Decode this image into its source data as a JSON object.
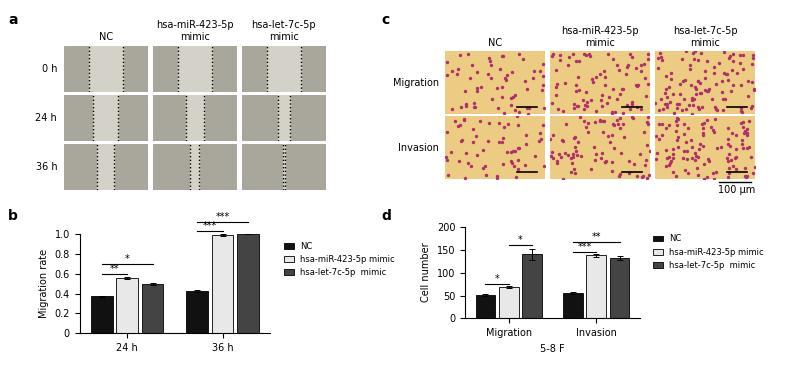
{
  "panel_labels": [
    "a",
    "b",
    "c",
    "d"
  ],
  "image_panels": [
    {
      "label": "a",
      "columns": [
        "NC",
        "hsa-miR-423-5p\nmimic",
        "hsa-let-7c-5p\nmimic"
      ],
      "rows": [
        "0 h",
        "24 h",
        "36 h"
      ]
    },
    {
      "label": "c",
      "columns": [
        "NC",
        "hsa-miR-423-5p\nmimic",
        "hsa-let-7c-5p\nmimic"
      ],
      "rows": [
        "Migration",
        "Invasion"
      ],
      "scale_bar": "100 μm"
    }
  ],
  "chart_data": [
    {
      "type": "bar",
      "panel": "b",
      "y_label": "Migration rate",
      "categories": [
        "24 h",
        "36 h"
      ],
      "series": [
        {
          "name": "NC",
          "color": "#111111",
          "values": [
            0.37,
            0.43
          ],
          "errors": [
            0.01,
            0.01
          ]
        },
        {
          "name": "hsa-miR-423-5p mimic",
          "color": "#e8e8e8",
          "values": [
            0.56,
            0.99
          ],
          "errors": [
            0.01,
            0.01
          ]
        },
        {
          "name": "hsa-let-7c-5p  mimic",
          "color": "#444444",
          "values": [
            0.5,
            1.0
          ],
          "errors": [
            0.01,
            0.0
          ]
        }
      ],
      "ylim": [
        0,
        1.0
      ],
      "yticks": [
        0,
        0.2,
        0.4,
        0.6,
        0.8,
        1.0
      ],
      "legend": "upper left",
      "significance": [
        {
          "category": "24 h",
          "from": "NC",
          "to": "hsa-miR-423-5p mimic",
          "y": 0.6,
          "label": "**"
        },
        {
          "category": "24 h",
          "from": "NC",
          "to": "hsa-let-7c-5p  mimic",
          "y": 0.7,
          "label": "*"
        },
        {
          "category": "36 h",
          "from": "NC",
          "to": "hsa-miR-423-5p mimic",
          "y": 1.03,
          "label": "***"
        },
        {
          "category": "36 h",
          "from": "NC",
          "to": "hsa-let-7c-5p  mimic",
          "y": 1.12,
          "label": "***"
        }
      ]
    },
    {
      "type": "bar",
      "panel": "d",
      "y_label": "Cell number",
      "x_label": "5-8 F",
      "categories": [
        "Migration",
        "Invasion"
      ],
      "series": [
        {
          "name": "NC",
          "color": "#111111",
          "values": [
            52,
            56
          ],
          "errors": [
            2,
            2
          ]
        },
        {
          "name": "hsa-miR-423-5p mimic",
          "color": "#e8e8e8",
          "values": [
            68,
            138
          ],
          "errors": [
            2,
            3
          ]
        },
        {
          "name": "hsa-let-7c-5p  mimic",
          "color": "#444444",
          "values": [
            140,
            132
          ],
          "errors": [
            12,
            4
          ]
        }
      ],
      "ylim": [
        0,
        200
      ],
      "yticks": [
        0,
        50,
        100,
        150,
        200
      ],
      "legend": "upper left",
      "significance": [
        {
          "category": "Migration",
          "from": "NC",
          "to": "hsa-miR-423-5p mimic",
          "y": 76,
          "label": "*"
        },
        {
          "category": "Migration",
          "from": "hsa-miR-423-5p mimic",
          "to": "hsa-let-7c-5p  mimic",
          "y": 160,
          "label": "*"
        },
        {
          "category": "Invasion",
          "from": "NC",
          "to": "hsa-miR-423-5p mimic",
          "y": 146,
          "label": "***"
        },
        {
          "category": "Invasion",
          "from": "NC",
          "to": "hsa-let-7c-5p  mimic",
          "y": 166,
          "label": "**"
        }
      ]
    }
  ]
}
